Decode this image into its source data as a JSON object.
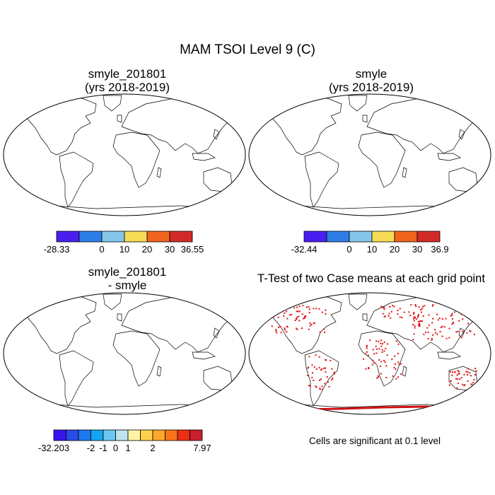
{
  "title": "MAM TSOI Level 9 (C)",
  "panels": [
    {
      "title_line1": "smyle_201801",
      "title_line2": "(yrs 2018-2019)",
      "colorbar": {
        "colors": [
          "#4b1ef0",
          "#2e7ee8",
          "#86c5ea",
          "#f5dc54",
          "#f0641e",
          "#d22a28"
        ],
        "labels": [
          "-28.33",
          "0",
          "10",
          "20",
          "30",
          "36.55"
        ]
      }
    },
    {
      "title_line1": "smyle",
      "title_line2": "(yrs 2018-2019)",
      "colorbar": {
        "colors": [
          "#4b1ef0",
          "#2e7ee8",
          "#86c5ea",
          "#f5dc54",
          "#f0641e",
          "#d22a28"
        ],
        "labels": [
          "-32.44",
          "0",
          "10",
          "20",
          "30",
          "36.9"
        ]
      }
    },
    {
      "title_line1": "smyle_201801",
      "title_line2": "- smyle",
      "colorbar": {
        "colors": [
          "#3a14ee",
          "#2a4be6",
          "#1e78f0",
          "#14a6f4",
          "#6cc8f2",
          "#bfe4f0",
          "#fff3a4",
          "#fdd24a",
          "#fca82a",
          "#f8741a",
          "#ee2e14",
          "#c8202c"
        ],
        "labels": [
          "-32.203",
          "-2",
          "-1",
          "0",
          "1",
          "2",
          "7.97"
        ]
      }
    },
    {
      "title_line1": "T-Test of two Case means at each grid point",
      "note": "Cells are significant at 0.1 level"
    }
  ]
}
